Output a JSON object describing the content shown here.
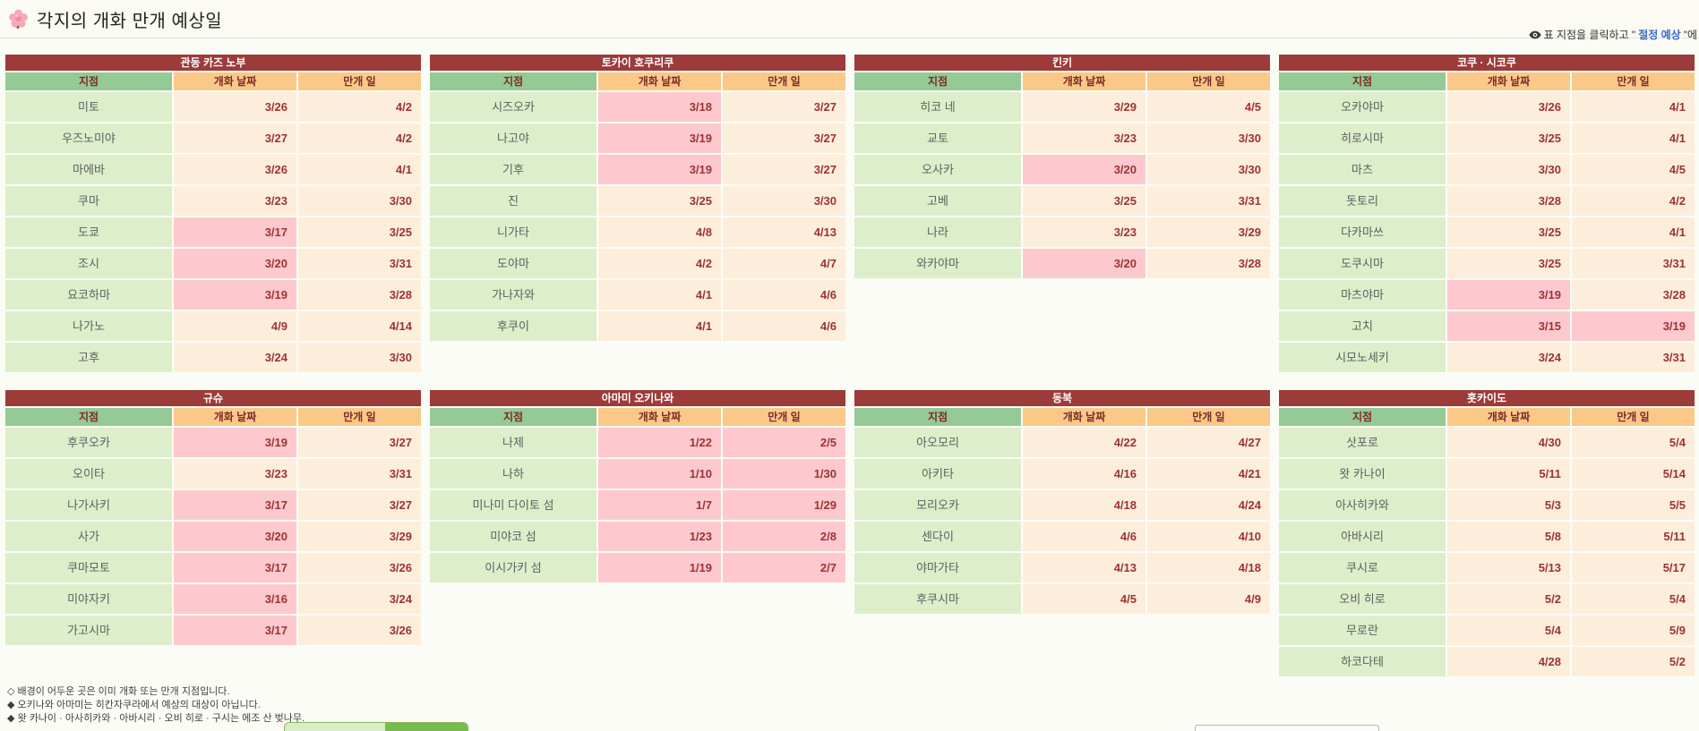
{
  "page": {
    "title": "각지의 개화 만개 예상일"
  },
  "hint": {
    "prefix": "표 지점을 클릭하고 \" ",
    "link": "절정 예상",
    "suffix": " \"에"
  },
  "columns": {
    "location": "지점",
    "bloom": "개화 날짜",
    "full_bloom": "만개 일"
  },
  "tables": [
    {
      "title": "관동 카즈 노부",
      "rows": [
        {
          "location": "미토",
          "bloom": "3/26",
          "full": "4/2",
          "bloom_done": false,
          "full_done": false
        },
        {
          "location": "우즈노미야",
          "bloom": "3/27",
          "full": "4/2",
          "bloom_done": false,
          "full_done": false
        },
        {
          "location": "마에바",
          "bloom": "3/26",
          "full": "4/1",
          "bloom_done": false,
          "full_done": false
        },
        {
          "location": "쿠마",
          "bloom": "3/23",
          "full": "3/30",
          "bloom_done": false,
          "full_done": false
        },
        {
          "location": "도쿄",
          "bloom": "3/17",
          "full": "3/25",
          "bloom_done": true,
          "full_done": false
        },
        {
          "location": "조시",
          "bloom": "3/20",
          "full": "3/31",
          "bloom_done": true,
          "full_done": false
        },
        {
          "location": "요코하마",
          "bloom": "3/19",
          "full": "3/28",
          "bloom_done": true,
          "full_done": false
        },
        {
          "location": "나가노",
          "bloom": "4/9",
          "full": "4/14",
          "bloom_done": false,
          "full_done": false
        },
        {
          "location": "고후",
          "bloom": "3/24",
          "full": "3/30",
          "bloom_done": false,
          "full_done": false
        }
      ]
    },
    {
      "title": "토카이 호쿠리쿠",
      "rows": [
        {
          "location": "시즈오카",
          "bloom": "3/18",
          "full": "3/27",
          "bloom_done": true,
          "full_done": false
        },
        {
          "location": "나고야",
          "bloom": "3/19",
          "full": "3/27",
          "bloom_done": true,
          "full_done": false
        },
        {
          "location": "기후",
          "bloom": "3/19",
          "full": "3/27",
          "bloom_done": true,
          "full_done": false
        },
        {
          "location": "진",
          "bloom": "3/25",
          "full": "3/30",
          "bloom_done": false,
          "full_done": false
        },
        {
          "location": "니가타",
          "bloom": "4/8",
          "full": "4/13",
          "bloom_done": false,
          "full_done": false
        },
        {
          "location": "도야마",
          "bloom": "4/2",
          "full": "4/7",
          "bloom_done": false,
          "full_done": false
        },
        {
          "location": "가나자와",
          "bloom": "4/1",
          "full": "4/6",
          "bloom_done": false,
          "full_done": false
        },
        {
          "location": "후쿠이",
          "bloom": "4/1",
          "full": "4/6",
          "bloom_done": false,
          "full_done": false
        }
      ]
    },
    {
      "title": "킨키",
      "rows": [
        {
          "location": "히코 네",
          "bloom": "3/29",
          "full": "4/5",
          "bloom_done": false,
          "full_done": false
        },
        {
          "location": "교토",
          "bloom": "3/23",
          "full": "3/30",
          "bloom_done": false,
          "full_done": false
        },
        {
          "location": "오사카",
          "bloom": "3/20",
          "full": "3/30",
          "bloom_done": true,
          "full_done": false
        },
        {
          "location": "고베",
          "bloom": "3/25",
          "full": "3/31",
          "bloom_done": false,
          "full_done": false
        },
        {
          "location": "나라",
          "bloom": "3/23",
          "full": "3/29",
          "bloom_done": false,
          "full_done": false
        },
        {
          "location": "와카야마",
          "bloom": "3/20",
          "full": "3/28",
          "bloom_done": true,
          "full_done": false
        }
      ]
    },
    {
      "title": "코쿠 · 시코쿠",
      "rows": [
        {
          "location": "오카야마",
          "bloom": "3/26",
          "full": "4/1",
          "bloom_done": false,
          "full_done": false
        },
        {
          "location": "히로시마",
          "bloom": "3/25",
          "full": "4/1",
          "bloom_done": false,
          "full_done": false
        },
        {
          "location": "마츠",
          "bloom": "3/30",
          "full": "4/5",
          "bloom_done": false,
          "full_done": false
        },
        {
          "location": "돗토리",
          "bloom": "3/28",
          "full": "4/2",
          "bloom_done": false,
          "full_done": false
        },
        {
          "location": "다카마쓰",
          "bloom": "3/25",
          "full": "4/1",
          "bloom_done": false,
          "full_done": false
        },
        {
          "location": "도쿠시마",
          "bloom": "3/25",
          "full": "3/31",
          "bloom_done": false,
          "full_done": false
        },
        {
          "location": "마츠야마",
          "bloom": "3/19",
          "full": "3/28",
          "bloom_done": true,
          "full_done": false
        },
        {
          "location": "고치",
          "bloom": "3/15",
          "full": "3/19",
          "bloom_done": true,
          "full_done": true
        },
        {
          "location": "시모노세키",
          "bloom": "3/24",
          "full": "3/31",
          "bloom_done": false,
          "full_done": false
        }
      ]
    },
    {
      "title": "규슈",
      "rows": [
        {
          "location": "후쿠오카",
          "bloom": "3/19",
          "full": "3/27",
          "bloom_done": true,
          "full_done": false
        },
        {
          "location": "오이타",
          "bloom": "3/23",
          "full": "3/31",
          "bloom_done": false,
          "full_done": false
        },
        {
          "location": "나가사키",
          "bloom": "3/17",
          "full": "3/27",
          "bloom_done": true,
          "full_done": false
        },
        {
          "location": "사가",
          "bloom": "3/20",
          "full": "3/29",
          "bloom_done": true,
          "full_done": false
        },
        {
          "location": "쿠마모토",
          "bloom": "3/17",
          "full": "3/26",
          "bloom_done": true,
          "full_done": false
        },
        {
          "location": "미야자키",
          "bloom": "3/16",
          "full": "3/24",
          "bloom_done": true,
          "full_done": false
        },
        {
          "location": "가고시마",
          "bloom": "3/17",
          "full": "3/26",
          "bloom_done": true,
          "full_done": false
        }
      ]
    },
    {
      "title": "아마미 오키나와",
      "rows": [
        {
          "location": "나제",
          "bloom": "1/22",
          "full": "2/5",
          "bloom_done": true,
          "full_done": true
        },
        {
          "location": "나하",
          "bloom": "1/10",
          "full": "1/30",
          "bloom_done": true,
          "full_done": true
        },
        {
          "location": "미나미 다이토 섬",
          "bloom": "1/7",
          "full": "1/29",
          "bloom_done": true,
          "full_done": true
        },
        {
          "location": "미야코 섬",
          "bloom": "1/23",
          "full": "2/8",
          "bloom_done": true,
          "full_done": true
        },
        {
          "location": "이시가키 섬",
          "bloom": "1/19",
          "full": "2/7",
          "bloom_done": true,
          "full_done": true
        }
      ]
    },
    {
      "title": "동북",
      "rows": [
        {
          "location": "아오모리",
          "bloom": "4/22",
          "full": "4/27",
          "bloom_done": false,
          "full_done": false
        },
        {
          "location": "아키타",
          "bloom": "4/16",
          "full": "4/21",
          "bloom_done": false,
          "full_done": false
        },
        {
          "location": "모리오카",
          "bloom": "4/18",
          "full": "4/24",
          "bloom_done": false,
          "full_done": false
        },
        {
          "location": "센다이",
          "bloom": "4/6",
          "full": "4/10",
          "bloom_done": false,
          "full_done": false
        },
        {
          "location": "야마가타",
          "bloom": "4/13",
          "full": "4/18",
          "bloom_done": false,
          "full_done": false
        },
        {
          "location": "후쿠시마",
          "bloom": "4/5",
          "full": "4/9",
          "bloom_done": false,
          "full_done": false
        }
      ]
    },
    {
      "title": "홋카이도",
      "rows": [
        {
          "location": "삿포로",
          "bloom": "4/30",
          "full": "5/4",
          "bloom_done": false,
          "full_done": false
        },
        {
          "location": "왓 카나이",
          "bloom": "5/11",
          "full": "5/14",
          "bloom_done": false,
          "full_done": false
        },
        {
          "location": "아사히카와",
          "bloom": "5/3",
          "full": "5/5",
          "bloom_done": false,
          "full_done": false
        },
        {
          "location": "아바시리",
          "bloom": "5/8",
          "full": "5/11",
          "bloom_done": false,
          "full_done": false
        },
        {
          "location": "쿠시로",
          "bloom": "5/13",
          "full": "5/17",
          "bloom_done": false,
          "full_done": false
        },
        {
          "location": "오비 히로",
          "bloom": "5/2",
          "full": "5/4",
          "bloom_done": false,
          "full_done": false
        },
        {
          "location": "무로란",
          "bloom": "5/4",
          "full": "5/9",
          "bloom_done": false,
          "full_done": false
        },
        {
          "location": "하코다테",
          "bloom": "4/28",
          "full": "5/2",
          "bloom_done": false,
          "full_done": false
        }
      ]
    }
  ],
  "footnotes": [
    "◇ 배경이 어두운 곳은 이미 개화 또는 만개 지점입니다.",
    "◆ 오키나와 아마미는 히칸자쿠라에서 예상의 대상이 아닙니다.",
    "◆ 왓 카나이 · 아사히카와 · 아바시리 · 오비 히로 · 구시는 에조 산 벚나무."
  ],
  "colors": {
    "table_title_bg": "#9d3a3a",
    "header_location_bg": "#95c995",
    "header_date_bg": "#fbc987",
    "header_text": "#7d2a2a",
    "location_cell_bg": "#ddeecb",
    "date_cell_bg": "#fdeedc",
    "bloomed_cell_bg": "#fdc9cf",
    "date_value": "#9c3333",
    "link": "#3a6bc9",
    "progress_light": "#d9eec6",
    "progress_dark": "#77bb4f"
  }
}
